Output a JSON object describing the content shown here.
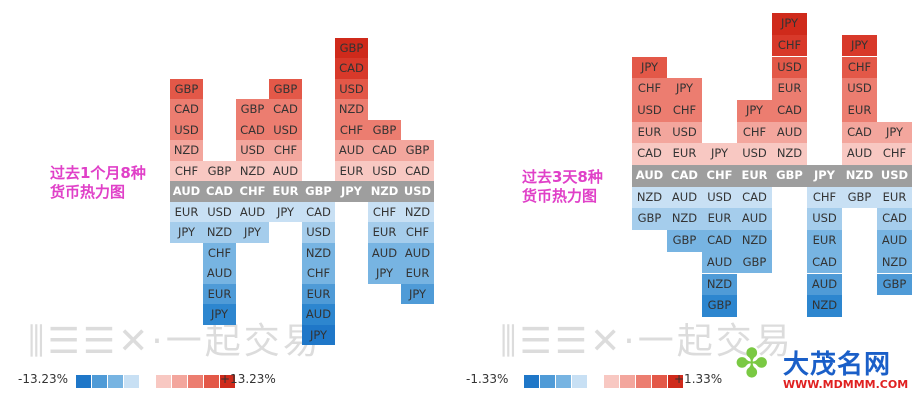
{
  "chart_data": [
    {
      "type": "heatmap",
      "title": "过去1个月8种货币热力图",
      "title_lines": [
        "过去1个月8种",
        "货币热力图"
      ],
      "base_currencies": [
        "AUD",
        "CAD",
        "CHF",
        "EUR",
        "GBP",
        "JPY",
        "NZD",
        "USD"
      ],
      "columns": [
        {
          "base": "AUD",
          "stronger": [
            "GBP",
            "CAD",
            "USD",
            "NZD",
            "CHF"
          ],
          "weaker": [
            "EUR",
            "JPY"
          ]
        },
        {
          "base": "CAD",
          "stronger": [
            "GBP"
          ],
          "weaker": [
            "USD",
            "NZD",
            "CHF",
            "AUD",
            "EUR",
            "JPY"
          ]
        },
        {
          "base": "CHF",
          "stronger": [
            "GBP",
            "CAD",
            "USD",
            "NZD"
          ],
          "weaker": [
            "AUD",
            "JPY"
          ]
        },
        {
          "base": "EUR",
          "stronger": [
            "GBP",
            "CAD",
            "USD",
            "CHF",
            "AUD"
          ],
          "weaker": [
            "JPY"
          ]
        },
        {
          "base": "GBP",
          "stronger": [],
          "weaker": [
            "CAD",
            "USD",
            "NZD",
            "CHF",
            "EUR",
            "AUD",
            "JPY"
          ]
        },
        {
          "base": "JPY",
          "stronger": [
            "GBP",
            "CAD",
            "USD",
            "NZD",
            "CHF",
            "AUD",
            "EUR"
          ],
          "weaker": []
        },
        {
          "base": "NZD",
          "stronger": [
            "GBP",
            "CAD",
            "USD"
          ],
          "weaker": [
            "CHF",
            "EUR",
            "AUD",
            "JPY"
          ]
        },
        {
          "base": "USD",
          "stronger": [
            "GBP",
            "CAD"
          ],
          "weaker": [
            "NZD",
            "CHF",
            "AUD",
            "EUR",
            "JPY"
          ]
        }
      ],
      "legend": {
        "min_label": "-13.23%",
        "max_label": "+13.23%"
      }
    },
    {
      "type": "heatmap",
      "title": "过去3天8种货币热力图",
      "title_lines": [
        "过去3天8种",
        "货币热力图"
      ],
      "base_currencies": [
        "AUD",
        "CAD",
        "CHF",
        "EUR",
        "GBP",
        "JPY",
        "NZD",
        "USD"
      ],
      "columns": [
        {
          "base": "AUD",
          "stronger": [
            "JPY",
            "CHF",
            "USD",
            "EUR",
            "CAD"
          ],
          "weaker": [
            "NZD",
            "GBP"
          ]
        },
        {
          "base": "CAD",
          "stronger": [
            "JPY",
            "CHF",
            "USD",
            "EUR"
          ],
          "weaker": [
            "AUD",
            "NZD",
            "GBP"
          ]
        },
        {
          "base": "CHF",
          "stronger": [
            "JPY"
          ],
          "weaker": [
            "USD",
            "EUR",
            "CAD",
            "AUD",
            "NZD",
            "GBP"
          ]
        },
        {
          "base": "EUR",
          "stronger": [
            "JPY",
            "CHF",
            "USD"
          ],
          "weaker": [
            "CAD",
            "AUD",
            "NZD",
            "GBP"
          ]
        },
        {
          "base": "GBP",
          "stronger": [
            "JPY",
            "CHF",
            "USD",
            "EUR",
            "CAD",
            "AUD",
            "NZD"
          ],
          "weaker": []
        },
        {
          "base": "JPY",
          "stronger": [],
          "weaker": [
            "CHF",
            "USD",
            "EUR",
            "CAD",
            "AUD",
            "NZD"
          ]
        },
        {
          "base": "NZD",
          "stronger": [
            "JPY",
            "CHF",
            "USD",
            "EUR",
            "CAD",
            "AUD"
          ],
          "weaker": [
            "GBP"
          ]
        },
        {
          "base": "USD",
          "stronger": [
            "JPY",
            "CHF"
          ],
          "weaker": [
            "EUR",
            "CAD",
            "AUD",
            "NZD",
            "GBP"
          ]
        }
      ],
      "legend": {
        "min_label": "-1.33%",
        "max_label": "+1.33%"
      }
    }
  ],
  "colors": {
    "header_bg": "#9e9e9e",
    "red_scale": [
      "#fbe5e3",
      "#f8c8c2",
      "#f3a69d",
      "#ec7d70",
      "#e35848",
      "#d8392a",
      "#cf2a1b"
    ],
    "blue_scale": [
      "#e2eff9",
      "#c8e0f4",
      "#a5cdec",
      "#77b4e2",
      "#4f9bd7",
      "#2d86cf",
      "#1f77c8"
    ],
    "title_color": "#e040c8"
  },
  "watermark": "⫼☰☰✕·一起交易",
  "logo": {
    "name": "大茂名网",
    "url": "WWW.MDMMM.COM",
    "icon": "clover-icon"
  }
}
